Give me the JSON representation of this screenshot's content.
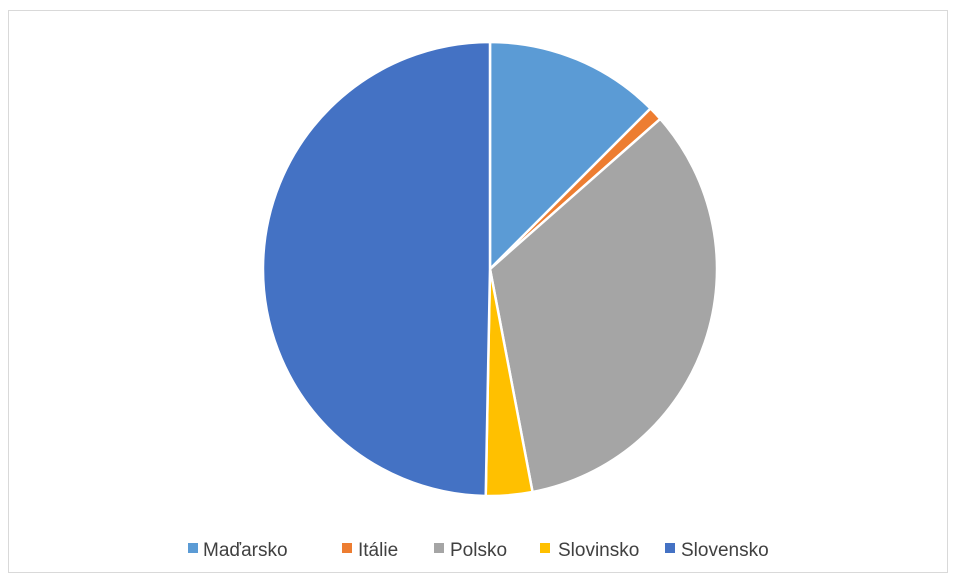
{
  "chart_data": {
    "type": "pie",
    "title": "",
    "legend_position": "bottom",
    "categories": [
      "Maďarsko",
      "Itálie",
      "Polsko",
      "Slovinsko",
      "Slovensko"
    ],
    "values": [
      12.5,
      1.0,
      33.5,
      3.3,
      49.7
    ],
    "colors": [
      "#5b9bd5",
      "#ed7d31",
      "#a5a5a5",
      "#ffc000",
      "#4472c4"
    ],
    "slice_border_color": "#ffffff"
  }
}
